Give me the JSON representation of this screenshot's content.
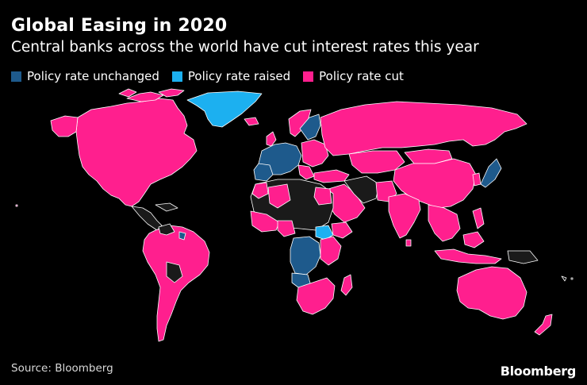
{
  "title": "Global Easing in 2020",
  "subtitle": "Central banks across the world have cut interest rates this year",
  "legend": [
    {
      "label": "Policy rate unchanged",
      "color": "#1e5a8c"
    },
    {
      "label": "Policy rate raised",
      "color": "#1cb0f0"
    },
    {
      "label": "Policy rate cut",
      "color": "#ff1f8e"
    }
  ],
  "colors": {
    "no_data": "#1a1a1a",
    "border": "#ffffff",
    "background": "#000000"
  },
  "source": "Source: Bloomberg",
  "brand": "Bloomberg"
}
